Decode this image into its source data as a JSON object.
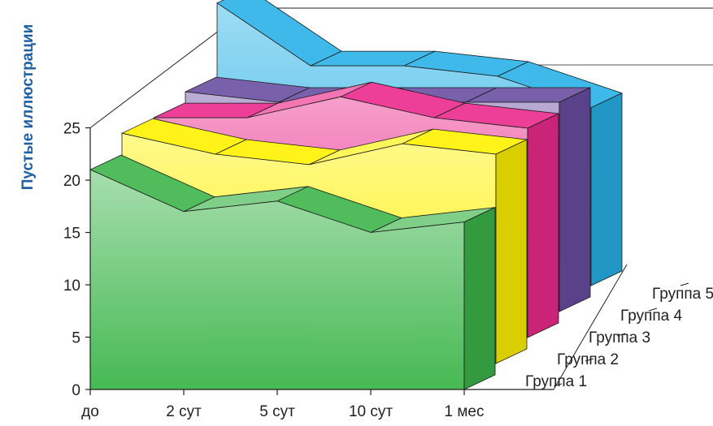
{
  "chart_data": {
    "type": "area",
    "variant": "3d-ribbon",
    "title": "",
    "ylabel": "Пустые иллюстрации",
    "xlabel": "",
    "categories": [
      "до",
      "2 сут",
      "5 сут",
      "10 сут",
      "1 мес"
    ],
    "yticks": [
      "0",
      "5",
      "10",
      "15",
      "20",
      "25"
    ],
    "ylim": [
      0,
      25
    ],
    "grid": false,
    "legend": "depth-axis-right",
    "series": [
      {
        "name": "Группа 1",
        "values": [
          21,
          17,
          18,
          15,
          16
        ],
        "color": "#3cb54a"
      },
      {
        "name": "Группа 2",
        "values": [
          22,
          20,
          19,
          21,
          20
        ],
        "color": "#fff200"
      },
      {
        "name": "Группа 3",
        "values": [
          21,
          21,
          23,
          21,
          20
        ],
        "color": "#ec2a8c"
      },
      {
        "name": "Группа 4",
        "values": [
          21,
          20,
          20,
          20,
          20
        ],
        "color": "#6a4ea2"
      },
      {
        "name": "Группа 5",
        "values": [
          27,
          21,
          21,
          20,
          17
        ],
        "color": "#28b1e6"
      }
    ],
    "ylabel_color": "#1f5fa3"
  }
}
